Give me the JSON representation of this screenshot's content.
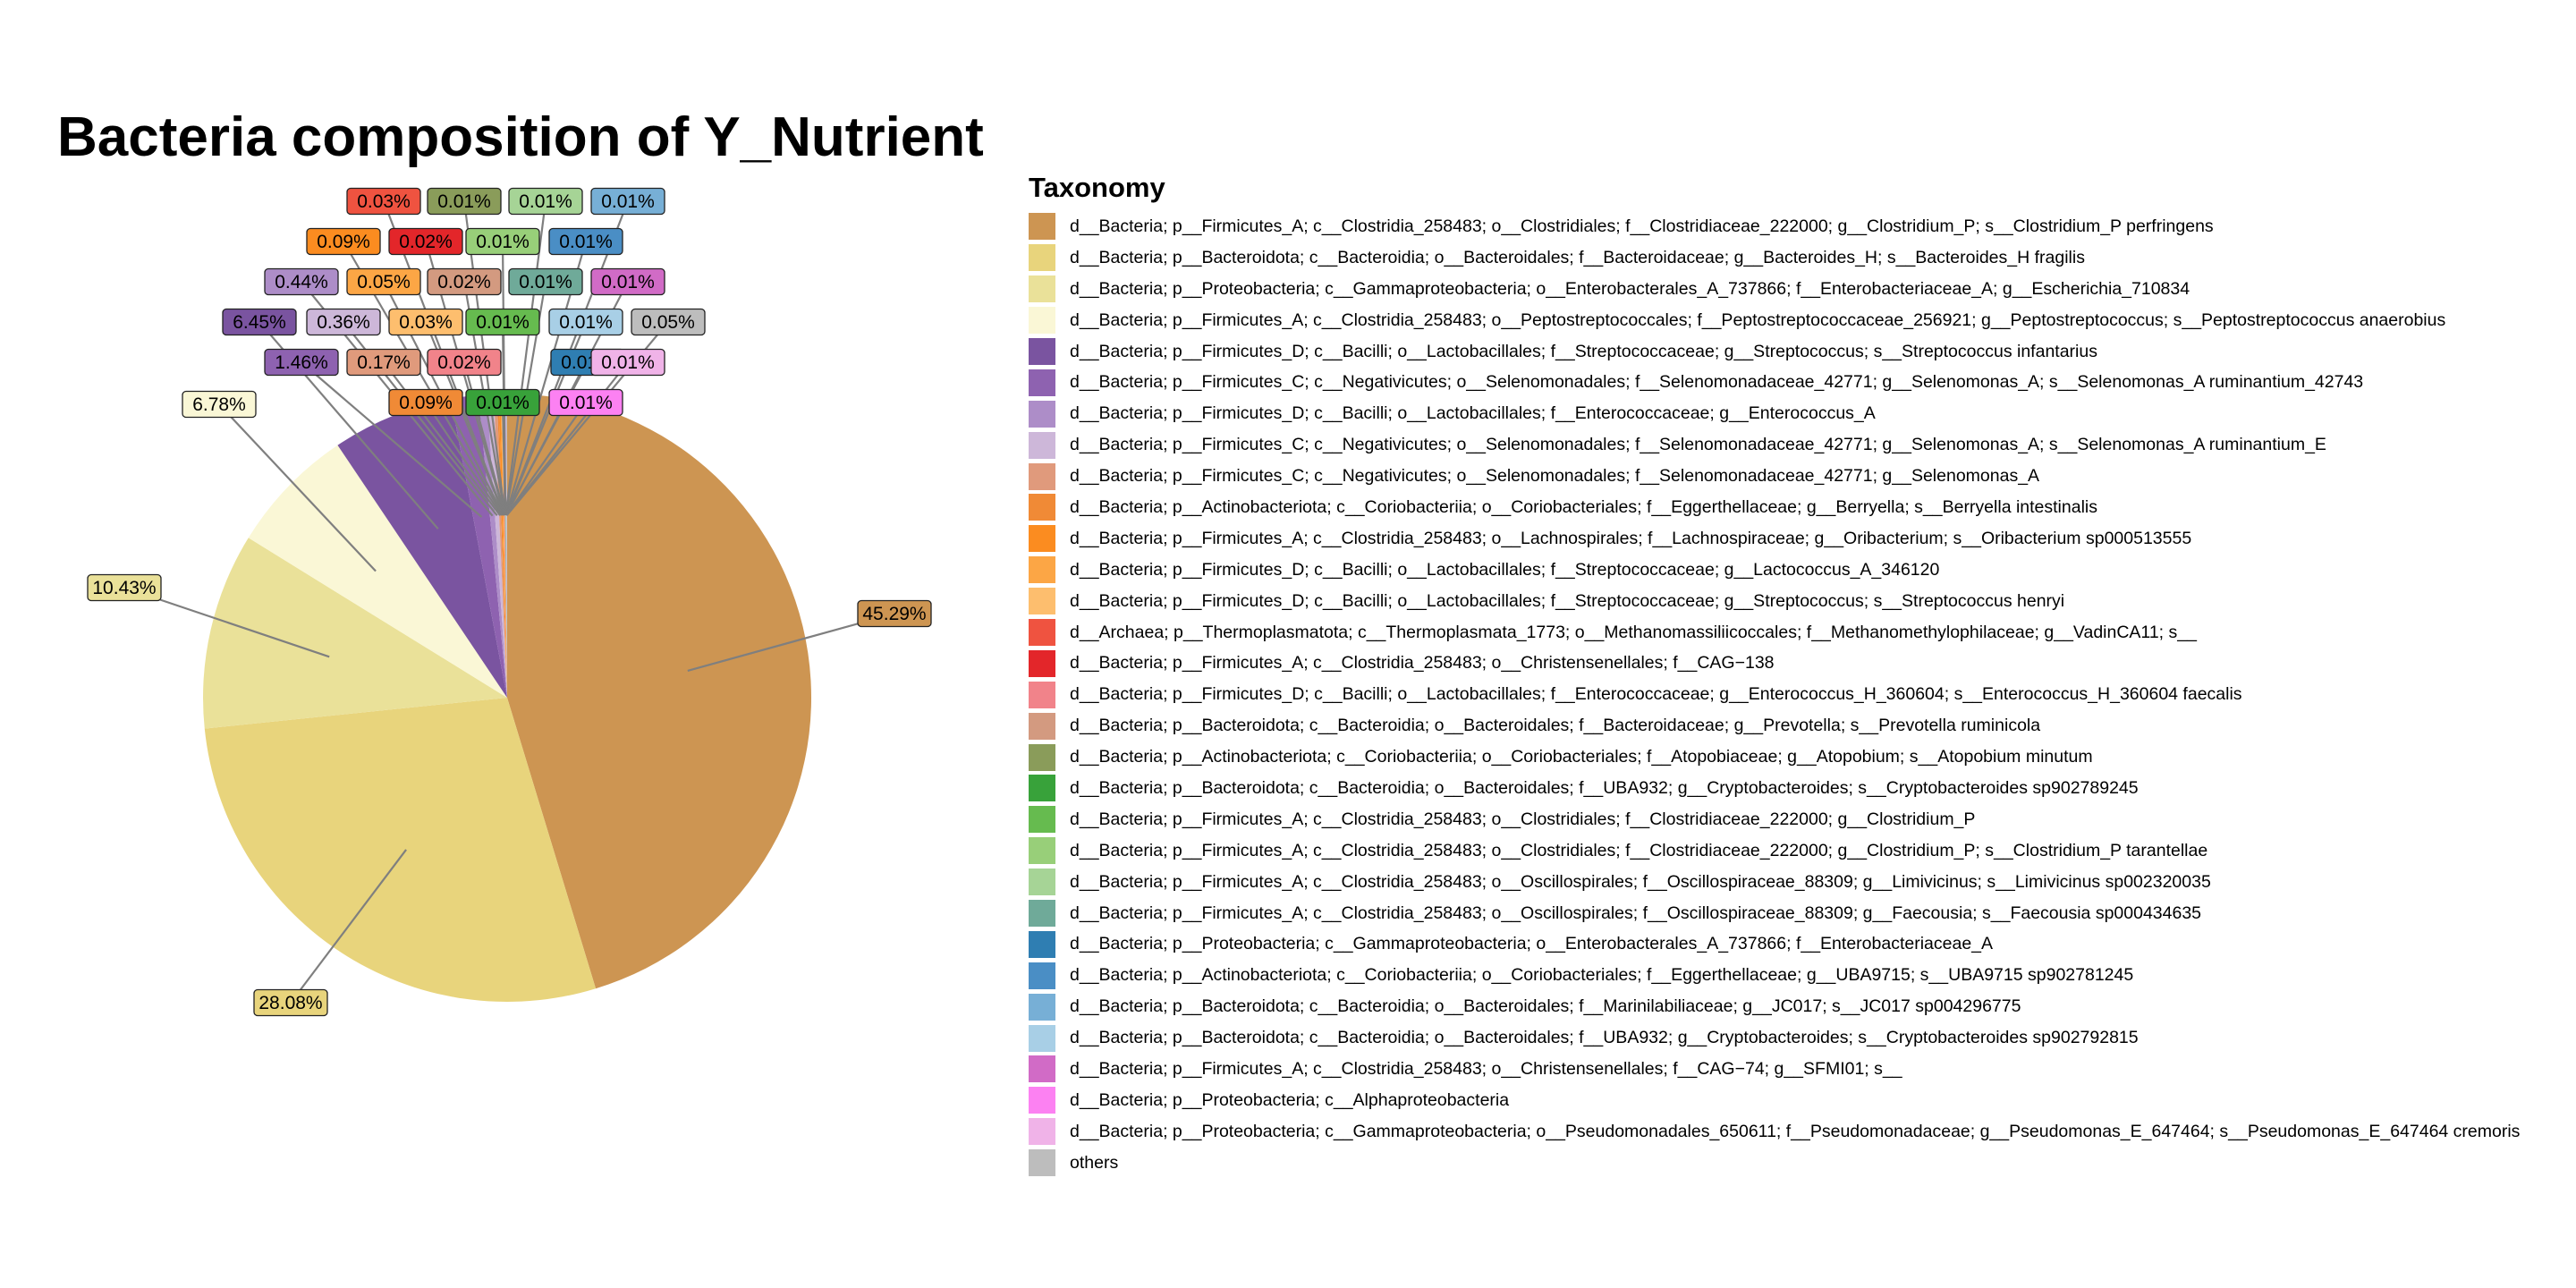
{
  "chart_data": {
    "type": "pie",
    "title": "Bacteria composition of Y_Nutrient",
    "legend_title": "Taxonomy",
    "legend_position": "right",
    "slices": [
      {
        "label": "d__Bacteria; p__Firmicutes_A; c__Clostridia_258483; o__Clostridiales; f__Clostridiaceae_222000; g__Clostridium_P; s__Clostridium_P perfringens",
        "value": 45.29,
        "value_label": "45.29%",
        "color": "#CD9552"
      },
      {
        "label": "d__Bacteria; p__Bacteroidota; c__Bacteroidia; o__Bacteroidales; f__Bacteroidaceae; g__Bacteroides_H; s__Bacteroides_H fragilis",
        "value": 28.08,
        "value_label": "28.08%",
        "color": "#E8D47C"
      },
      {
        "label": "d__Bacteria; p__Proteobacteria; c__Gammaproteobacteria; o__Enterobacterales_A_737866; f__Enterobacteriaceae_A; g__Escherichia_710834",
        "value": 10.43,
        "value_label": "10.43%",
        "color": "#EAE199"
      },
      {
        "label": "d__Bacteria; p__Firmicutes_A; c__Clostridia_258483; o__Peptostreptococcales; f__Peptostreptococcaceae_256921; g__Peptostreptococcus; s__Peptostreptococcus anaerobius",
        "value": 6.78,
        "value_label": "6.78%",
        "color": "#FAF7D6"
      },
      {
        "label": "d__Bacteria; p__Firmicutes_D; c__Bacilli; o__Lactobacillales; f__Streptococcaceae; g__Streptococcus; s__Streptococcus infantarius",
        "value": 6.45,
        "value_label": "6.45%",
        "color": "#7A54A0"
      },
      {
        "label": "d__Bacteria; p__Firmicutes_C; c__Negativicutes; o__Selenomonadales; f__Selenomonadaceae_42771; g__Selenomonas_A; s__Selenomonas_A ruminantium_42743",
        "value": 1.46,
        "value_label": "1.46%",
        "color": "#8E62B0"
      },
      {
        "label": "d__Bacteria; p__Firmicutes_D; c__Bacilli; o__Lactobacillales; f__Enterococcaceae; g__Enterococcus_A",
        "value": 0.44,
        "value_label": "0.44%",
        "color": "#AD8DC8"
      },
      {
        "label": "d__Bacteria; p__Firmicutes_C; c__Negativicutes; o__Selenomonadales; f__Selenomonadaceae_42771; g__Selenomonas_A; s__Selenomonas_A ruminantium_E",
        "value": 0.36,
        "value_label": "0.36%",
        "color": "#CDB7D9"
      },
      {
        "label": "d__Bacteria; p__Firmicutes_C; c__Negativicutes; o__Selenomonadales; f__Selenomonadaceae_42771; g__Selenomonas_A",
        "value": 0.17,
        "value_label": "0.17%",
        "color": "#E09A7C"
      },
      {
        "label": "d__Bacteria; p__Actinobacteriota; c__Coriobacteriia; o__Coriobacteriales; f__Eggerthellaceae; g__Berryella; s__Berryella intestinalis",
        "value": 0.09,
        "value_label": "0.09%",
        "color": "#F08A36"
      },
      {
        "label": "d__Bacteria; p__Firmicutes_A; c__Clostridia_258483; o__Lachnospirales; f__Lachnospiraceae; g__Oribacterium; s__Oribacterium sp000513555",
        "value": 0.09,
        "value_label": "0.09%",
        "color": "#FB8C20"
      },
      {
        "label": "d__Bacteria; p__Firmicutes_D; c__Bacilli; o__Lactobacillales; f__Streptococcaceae; g__Lactococcus_A_346120",
        "value": 0.05,
        "value_label": "0.05%",
        "color": "#FCA645"
      },
      {
        "label": "d__Bacteria; p__Firmicutes_D; c__Bacilli; o__Lactobacillales; f__Streptococcaceae; g__Streptococcus; s__Streptococcus henryi",
        "value": 0.03,
        "value_label": "0.03%",
        "color": "#FDBE6E"
      },
      {
        "label": "d__Archaea; p__Thermoplasmatota; c__Thermoplasmata_1773; o__Methanomassiliicoccales; f__Methanomethylophilaceae; g__VadinCA11; s__",
        "value": 0.03,
        "value_label": "0.03%",
        "color": "#EF5340"
      },
      {
        "label": "d__Bacteria; p__Firmicutes_A; c__Clostridia_258483; o__Christensenellales; f__CAG−138",
        "value": 0.02,
        "value_label": "0.02%",
        "color": "#E3262A"
      },
      {
        "label": "d__Bacteria; p__Firmicutes_D; c__Bacilli; o__Lactobacillales; f__Enterococcaceae; g__Enterococcus_H_360604; s__Enterococcus_H_360604 faecalis",
        "value": 0.02,
        "value_label": "0.02%",
        "color": "#F1838A"
      },
      {
        "label": "d__Bacteria; p__Bacteroidota; c__Bacteroidia; o__Bacteroidales; f__Bacteroidaceae; g__Prevotella; s__Prevotella ruminicola",
        "value": 0.02,
        "value_label": "0.02%",
        "color": "#D39A80"
      },
      {
        "label": "d__Bacteria; p__Actinobacteriota; c__Coriobacteriia; o__Coriobacteriales; f__Atopobiaceae; g__Atopobium; s__Atopobium minutum",
        "value": 0.01,
        "value_label": "0.01%",
        "color": "#8A9C5A"
      },
      {
        "label": "d__Bacteria; p__Bacteroidota; c__Bacteroidia; o__Bacteroidales; f__UBA932; g__Cryptobacteroides; s__Cryptobacteroides sp902789245",
        "value": 0.01,
        "value_label": "0.01%",
        "color": "#38A23A"
      },
      {
        "label": "d__Bacteria; p__Firmicutes_A; c__Clostridia_258483; o__Clostridiales; f__Clostridiaceae_222000; g__Clostridium_P",
        "value": 0.01,
        "value_label": "0.01%",
        "color": "#66BB4F"
      },
      {
        "label": "d__Bacteria; p__Firmicutes_A; c__Clostridia_258483; o__Clostridiales; f__Clostridiaceae_222000; g__Clostridium_P; s__Clostridium_P tarantellae",
        "value": 0.01,
        "value_label": "0.01%",
        "color": "#98CF79"
      },
      {
        "label": "d__Bacteria; p__Firmicutes_A; c__Clostridia_258483; o__Oscillospirales; f__Oscillospiraceae_88309; g__Limivicinus; s__Limivicinus sp002320035",
        "value": 0.01,
        "value_label": "0.01%",
        "color": "#A6D496"
      },
      {
        "label": "d__Bacteria; p__Firmicutes_A; c__Clostridia_258483; o__Oscillospirales; f__Oscillospiraceae_88309; g__Faecousia; s__Faecousia sp000434635",
        "value": 0.01,
        "value_label": "0.01%",
        "color": "#6FAA99"
      },
      {
        "label": "d__Bacteria; p__Proteobacteria; c__Gammaproteobacteria; o__Enterobacterales_A_737866; f__Enterobacteriaceae_A",
        "value": 0.01,
        "value_label": "0.01%",
        "color": "#2F7EB2"
      },
      {
        "label": "d__Bacteria; p__Actinobacteriota; c__Coriobacteriia; o__Coriobacteriales; f__Eggerthellaceae; g__UBA9715; s__UBA9715 sp902781245",
        "value": 0.01,
        "value_label": "0.01%",
        "color": "#4A8EC5"
      },
      {
        "label": "d__Bacteria; p__Bacteroidota; c__Bacteroidia; o__Bacteroidales; f__Marinilabiliaceae; g__JC017; s__JC017 sp004296775",
        "value": 0.01,
        "value_label": "0.01%",
        "color": "#77AFD6"
      },
      {
        "label": "d__Bacteria; p__Bacteroidota; c__Bacteroidia; o__Bacteroidales; f__UBA932; g__Cryptobacteroides; s__Cryptobacteroides sp902792815",
        "value": 0.01,
        "value_label": "0.01%",
        "color": "#A8CFE6"
      },
      {
        "label": "d__Bacteria; p__Firmicutes_A; c__Clostridia_258483; o__Christensenellales; f__CAG−74; g__SFMI01; s__",
        "value": 0.01,
        "value_label": "0.01%",
        "color": "#D16BC6"
      },
      {
        "label": "d__Bacteria; p__Proteobacteria; c__Alphaproteobacteria",
        "value": 0.01,
        "value_label": "0.01%",
        "color": "#FC81F2"
      },
      {
        "label": "d__Bacteria; p__Proteobacteria; c__Gammaproteobacteria; o__Pseudomonadales_650611; f__Pseudomonadaceae; g__Pseudomonas_E_647464; s__Pseudomonas_E_647464 cremoris",
        "value": 0.01,
        "value_label": "0.01%",
        "color": "#F0B3E8"
      },
      {
        "label": "others",
        "value": 0.05,
        "value_label": "0.05%",
        "color": "#BDBDBD"
      }
    ]
  }
}
